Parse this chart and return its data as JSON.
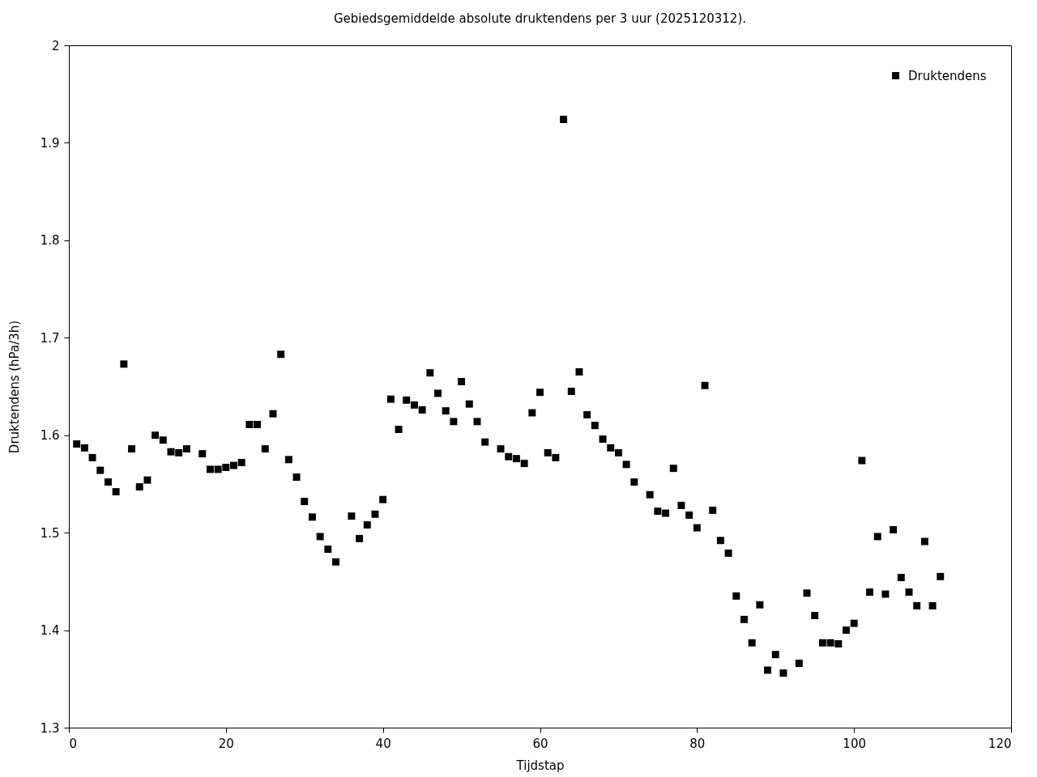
{
  "chart_data": {
    "type": "scatter",
    "title": "Gebiedsgemiddelde absolute druktendens per 3 uur (2025120312).",
    "xlabel": "Tijdstap",
    "ylabel": "Druktendens (hPa/3h)",
    "x": [
      1,
      2,
      3,
      4,
      5,
      6,
      7,
      8,
      9,
      10,
      11,
      12,
      13,
      14,
      15,
      17,
      18,
      19,
      20,
      21,
      22,
      23,
      24,
      25,
      26,
      27,
      28,
      29,
      30,
      31,
      32,
      33,
      34,
      36,
      37,
      38,
      39,
      40,
      41,
      42,
      43,
      44,
      45,
      46,
      47,
      48,
      49,
      50,
      51,
      52,
      53,
      55,
      56,
      57,
      58,
      59,
      60,
      61,
      62,
      63,
      64,
      65,
      66,
      67,
      68,
      69,
      70,
      71,
      72,
      74,
      75,
      76,
      77,
      78,
      79,
      80,
      81,
      82,
      83,
      84,
      85,
      86,
      87,
      88,
      89,
      90,
      91,
      93,
      94,
      95,
      96,
      97,
      98,
      99,
      100,
      101,
      102,
      103,
      104,
      105,
      106,
      107,
      108,
      109,
      110,
      111
    ],
    "series": [
      {
        "name": "Druktendens",
        "color": "#000000",
        "values": [
          1.591,
          1.587,
          1.577,
          1.564,
          1.552,
          1.542,
          1.673,
          1.586,
          1.547,
          1.554,
          1.6,
          1.595,
          1.583,
          1.582,
          1.586,
          1.581,
          1.565,
          1.565,
          1.567,
          1.569,
          1.572,
          1.611,
          1.611,
          1.586,
          1.622,
          1.683,
          1.575,
          1.557,
          1.532,
          1.516,
          1.496,
          1.483,
          1.47,
          1.517,
          1.494,
          1.508,
          1.519,
          1.534,
          1.637,
          1.606,
          1.636,
          1.631,
          1.626,
          1.664,
          1.643,
          1.625,
          1.614,
          1.655,
          1.632,
          1.614,
          1.593,
          1.586,
          1.578,
          1.576,
          1.571,
          1.623,
          1.644,
          1.582,
          1.577,
          1.924,
          1.645,
          1.665,
          1.621,
          1.61,
          1.596,
          1.587,
          1.582,
          1.57,
          1.552,
          1.539,
          1.522,
          1.52,
          1.566,
          1.528,
          1.518,
          1.505,
          1.651,
          1.523,
          1.492,
          1.479,
          1.435,
          1.411,
          1.387,
          1.426,
          1.359,
          1.375,
          1.356,
          1.366,
          1.438,
          1.415,
          1.387,
          1.387,
          1.386,
          1.4,
          1.407,
          1.574,
          1.439,
          1.496,
          1.437,
          1.503,
          1.454,
          1.439,
          1.425,
          1.491,
          1.425,
          1.455
        ]
      }
    ],
    "xlim": [
      0,
      120
    ],
    "xticks": [
      0,
      20,
      40,
      60,
      80,
      100,
      120
    ],
    "ylim": [
      1.3,
      2
    ],
    "yticks": [
      1.3,
      1.4,
      1.5,
      1.6,
      1.7,
      1.8,
      1.9,
      2
    ],
    "legend": "top right",
    "marker": "square"
  }
}
